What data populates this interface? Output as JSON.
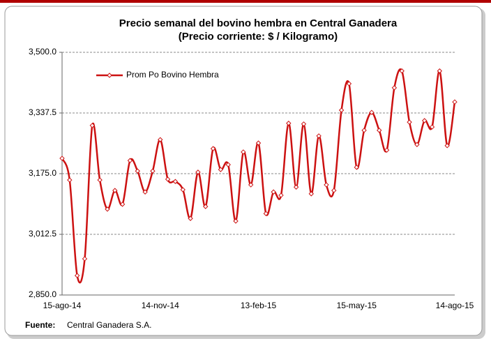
{
  "chart_data": {
    "type": "line",
    "title": "Precio semanal del bovino  hembra en Central Ganadera",
    "subtitle": "(Precio corriente: $ / Kilogramo)",
    "source_label": "Fuente:",
    "source_text": "Central Ganadera S.A.",
    "categories": [
      "15-ago-14",
      null,
      null,
      null,
      null,
      null,
      null,
      null,
      null,
      null,
      null,
      null,
      null,
      "14-nov-14",
      null,
      null,
      null,
      null,
      null,
      null,
      null,
      null,
      null,
      null,
      null,
      null,
      "13-feb-15",
      null,
      null,
      null,
      null,
      null,
      null,
      null,
      null,
      null,
      null,
      null,
      null,
      "15-may-15",
      null,
      null,
      null,
      null,
      null,
      null,
      null,
      null,
      null,
      null,
      null,
      null,
      "14-ago-15"
    ],
    "series": [
      {
        "name": "Prom Po Bovino Hembra",
        "color": "#cc1111",
        "values": [
          3216,
          3158,
          2902,
          2947,
          3304,
          3158,
          3080,
          3130,
          3093,
          3210,
          3182,
          3126,
          3182,
          3266,
          3160,
          3154,
          3132,
          3055,
          3179,
          3087,
          3242,
          3186,
          3199,
          3048,
          3233,
          3145,
          3257,
          3068,
          3126,
          3117,
          3310,
          3139,
          3308,
          3121,
          3276,
          3145,
          3130,
          3345,
          3416,
          3192,
          3291,
          3339,
          3291,
          3238,
          3405,
          3450,
          3313,
          3253,
          3317,
          3300,
          3450,
          3250,
          3367
        ]
      }
    ],
    "ylim": [
      2850,
      3500
    ],
    "yticks": [
      {
        "value": 2850,
        "label": "2,850.0"
      },
      {
        "value": 3012.5,
        "label": "3,012.5"
      },
      {
        "value": 3175,
        "label": "3,175.0"
      },
      {
        "value": 3337.5,
        "label": "3,337.5"
      },
      {
        "value": 3500,
        "label": "3,500.0"
      }
    ],
    "grid": true,
    "legend": "top-left"
  }
}
